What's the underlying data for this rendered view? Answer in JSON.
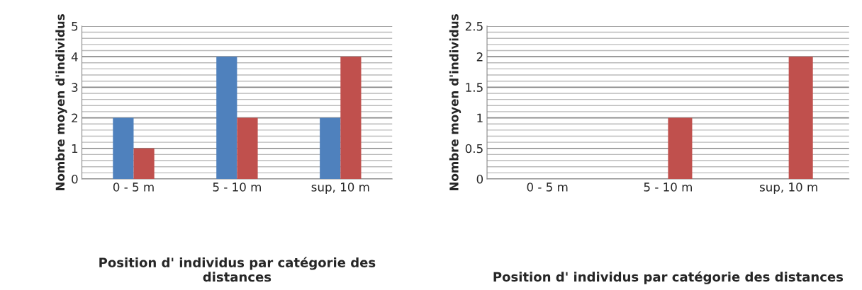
{
  "chart_data": [
    {
      "type": "bar",
      "categories": [
        "0 - 5 m",
        "5 - 10 m",
        "sup, 10 m"
      ],
      "xlabel": "Position d' individus par catégorie des distances",
      "ylabel": "Nombre moyen d'individus",
      "ylim": [
        0,
        5
      ],
      "yticks": [
        0,
        1,
        2,
        3,
        4,
        5
      ],
      "grid": "y",
      "legend": false,
      "series": [
        {
          "color": "#4f81bd",
          "values": [
            2,
            4,
            2
          ]
        },
        {
          "color": "#c0504d",
          "values": [
            1,
            2,
            4
          ]
        }
      ]
    },
    {
      "type": "bar",
      "categories": [
        "0 - 5 m",
        "5 - 10 m",
        "sup, 10 m"
      ],
      "xlabel": "Position d' individus par catégorie des distances",
      "ylabel": "Nombre moyen d'individus",
      "ylim": [
        0,
        2.5
      ],
      "yticks": [
        0,
        0.5,
        1,
        1.5,
        2,
        2.5
      ],
      "grid": "y",
      "legend": false,
      "series": [
        {
          "color": "#4f81bd",
          "values": [
            0,
            0,
            0
          ]
        },
        {
          "color": "#c0504d",
          "values": [
            0,
            1,
            2
          ]
        }
      ]
    }
  ]
}
